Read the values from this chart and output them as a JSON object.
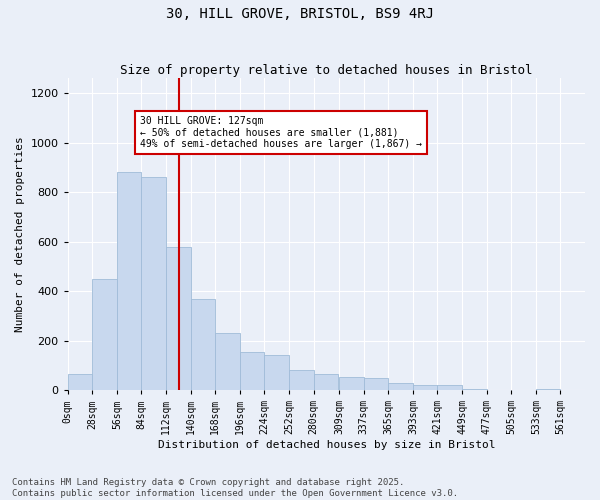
{
  "title": "30, HILL GROVE, BRISTOL, BS9 4RJ",
  "subtitle": "Size of property relative to detached houses in Bristol",
  "xlabel": "Distribution of detached houses by size in Bristol",
  "ylabel": "Number of detached properties",
  "bar_color": "#c8d8ee",
  "bar_edge_color": "#a0bcd8",
  "background_color": "#eaeff8",
  "grid_color": "#ffffff",
  "red_line_x": 127,
  "annotation_text": "30 HILL GROVE: 127sqm\n← 50% of detached houses are smaller (1,881)\n49% of semi-detached houses are larger (1,867) →",
  "annotation_box_color": "#ffffff",
  "annotation_box_edge_color": "#cc0000",
  "red_line_color": "#cc0000",
  "bins_left_edges": [
    0,
    28,
    56,
    84,
    112,
    140,
    168,
    196,
    224,
    252,
    280,
    309,
    337,
    365,
    393,
    421,
    449,
    477,
    505,
    533,
    561
  ],
  "bin_width": 28,
  "bar_heights": [
    65,
    450,
    880,
    860,
    580,
    370,
    230,
    155,
    140,
    80,
    65,
    55,
    50,
    30,
    20,
    20,
    5,
    0,
    0,
    5
  ],
  "ylim": [
    0,
    1260
  ],
  "yticks": [
    0,
    200,
    400,
    600,
    800,
    1000,
    1200
  ],
  "tick_labels": [
    "0sqm",
    "28sqm",
    "56sqm",
    "84sqm",
    "112sqm",
    "140sqm",
    "168sqm",
    "196sqm",
    "224sqm",
    "252sqm",
    "280sqm",
    "309sqm",
    "337sqm",
    "365sqm",
    "393sqm",
    "421sqm",
    "449sqm",
    "477sqm",
    "505sqm",
    "533sqm",
    "561sqm"
  ],
  "footer_text": "Contains HM Land Registry data © Crown copyright and database right 2025.\nContains public sector information licensed under the Open Government Licence v3.0.",
  "footer_fontsize": 6.5,
  "title_fontsize": 10,
  "subtitle_fontsize": 9,
  "axis_label_fontsize": 8,
  "tick_fontsize": 7,
  "annotation_fontsize": 7
}
